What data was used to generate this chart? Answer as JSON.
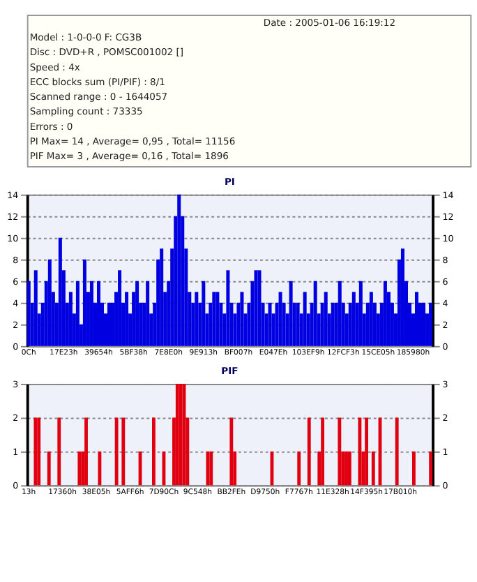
{
  "chart_data": [
    {
      "type": "other",
      "annotations": [
        "Date : 2005-01-06 16:19:12",
        "Model : 1-0-0-0 F: CG3B",
        "Disc : DVD+R , POMSC001002 []",
        "Speed : 4x",
        "ECC blocks sum (PI/PIF) : 8/1",
        "Scanned range : 0 - 1644057",
        "Sampling count : 73335",
        "Errors : 0",
        "PI Max= 14 , Average= 0,95 , Total= 11156",
        "PIF Max= 3 , Average= 0,16 , Total= 1896"
      ]
    },
    {
      "type": "bar",
      "title": "PI",
      "color": "#0000e0",
      "ylim": [
        0,
        14
      ],
      "yticks": [
        0,
        2,
        4,
        6,
        8,
        10,
        12,
        14
      ],
      "y2lim": [
        0,
        14
      ],
      "y2ticks": [
        0,
        2,
        4,
        6,
        8,
        10,
        12,
        14
      ],
      "grid": "y",
      "categories": [
        "0Ch",
        null,
        null,
        null,
        null,
        null,
        null,
        null,
        null,
        null,
        "17E23h",
        null,
        null,
        null,
        null,
        null,
        null,
        null,
        null,
        null,
        "39654h",
        null,
        null,
        null,
        null,
        null,
        null,
        null,
        null,
        null,
        "5BF38h",
        null,
        null,
        null,
        null,
        null,
        null,
        null,
        null,
        null,
        "7E8E0h",
        null,
        null,
        null,
        null,
        null,
        null,
        null,
        null,
        null,
        "9E913h",
        null,
        null,
        null,
        null,
        null,
        null,
        null,
        null,
        null,
        "BF007h",
        null,
        null,
        null,
        null,
        null,
        null,
        null,
        null,
        null,
        "E047Eh",
        null,
        null,
        null,
        null,
        null,
        null,
        null,
        null,
        null,
        "103EF9h",
        null,
        null,
        null,
        null,
        null,
        null,
        null,
        null,
        null,
        "12FCF3h",
        null,
        null,
        null,
        null,
        null,
        null,
        null,
        null,
        null,
        "15CE05h",
        null,
        null,
        null,
        null,
        null,
        null,
        null,
        null,
        null,
        "185980h",
        null,
        null,
        null,
        null,
        null
      ],
      "values": [
        6,
        4,
        7,
        3,
        4,
        6,
        8,
        5,
        4,
        10,
        7,
        4,
        5,
        3,
        6,
        2,
        8,
        5,
        6,
        4,
        6,
        4,
        3,
        4,
        4,
        5,
        7,
        4,
        5,
        3,
        5,
        6,
        4,
        4,
        6,
        3,
        4,
        8,
        9,
        5,
        6,
        9,
        12,
        14,
        12,
        9,
        5,
        4,
        5,
        4,
        6,
        3,
        4,
        5,
        5,
        4,
        3,
        7,
        4,
        3,
        4,
        5,
        3,
        4,
        6,
        7,
        7,
        4,
        3,
        4,
        3,
        4,
        5,
        4,
        3,
        6,
        4,
        4,
        3,
        5,
        3,
        4,
        6,
        3,
        4,
        5,
        3,
        4,
        4,
        6,
        4,
        3,
        4,
        5,
        4,
        6,
        3,
        4,
        5,
        4,
        3,
        4,
        6,
        5,
        4,
        3,
        8,
        9,
        6,
        4,
        3,
        5,
        4,
        4,
        3,
        4
      ]
    },
    {
      "type": "bar",
      "title": "PIF",
      "color": "#e00010",
      "ylim": [
        0,
        3
      ],
      "yticks": [
        0,
        1,
        2,
        3
      ],
      "y2lim": [
        0,
        3
      ],
      "y2ticks": [
        0,
        1,
        2,
        3
      ],
      "grid": "y",
      "categories": [
        "13h",
        null,
        null,
        null,
        null,
        null,
        null,
        null,
        null,
        null,
        "17360h",
        null,
        null,
        null,
        null,
        null,
        null,
        null,
        null,
        null,
        "38E05h",
        null,
        null,
        null,
        null,
        null,
        null,
        null,
        null,
        null,
        "5AFF6h",
        null,
        null,
        null,
        null,
        null,
        null,
        null,
        null,
        null,
        "7D90Ch",
        null,
        null,
        null,
        null,
        null,
        null,
        null,
        null,
        null,
        "9C548h",
        null,
        null,
        null,
        null,
        null,
        null,
        null,
        null,
        null,
        "BB2FEh",
        null,
        null,
        null,
        null,
        null,
        null,
        null,
        null,
        null,
        "D9750h",
        null,
        null,
        null,
        null,
        null,
        null,
        null,
        null,
        null,
        "F7767h",
        null,
        null,
        null,
        null,
        null,
        null,
        null,
        null,
        null,
        "11E328h",
        null,
        null,
        null,
        null,
        null,
        null,
        null,
        null,
        null,
        "14F395h",
        null,
        null,
        null,
        null,
        null,
        null,
        null,
        null,
        null,
        "17B010h",
        null,
        null,
        null,
        null,
        null,
        null,
        null,
        null,
        null
      ],
      "values": [
        0,
        0,
        2,
        2,
        0,
        0,
        1,
        0,
        0,
        2,
        0,
        0,
        0,
        0,
        0,
        1,
        1,
        2,
        0,
        0,
        0,
        1,
        0,
        0,
        0,
        0,
        2,
        0,
        2,
        0,
        0,
        0,
        0,
        1,
        0,
        0,
        0,
        2,
        0,
        0,
        1,
        0,
        0,
        2,
        3,
        3,
        3,
        2,
        0,
        0,
        0,
        0,
        0,
        1,
        1,
        0,
        0,
        0,
        0,
        0,
        2,
        1,
        0,
        0,
        0,
        0,
        0,
        0,
        0,
        0,
        0,
        0,
        1,
        0,
        0,
        0,
        0,
        0,
        0,
        0,
        1,
        0,
        0,
        2,
        0,
        0,
        1,
        2,
        0,
        0,
        0,
        0,
        2,
        1,
        1,
        1,
        0,
        0,
        2,
        1,
        2,
        0,
        1,
        0,
        2,
        0,
        0,
        0,
        0,
        2,
        0,
        0,
        0,
        0,
        1,
        0,
        0,
        0,
        0,
        1
      ]
    }
  ]
}
